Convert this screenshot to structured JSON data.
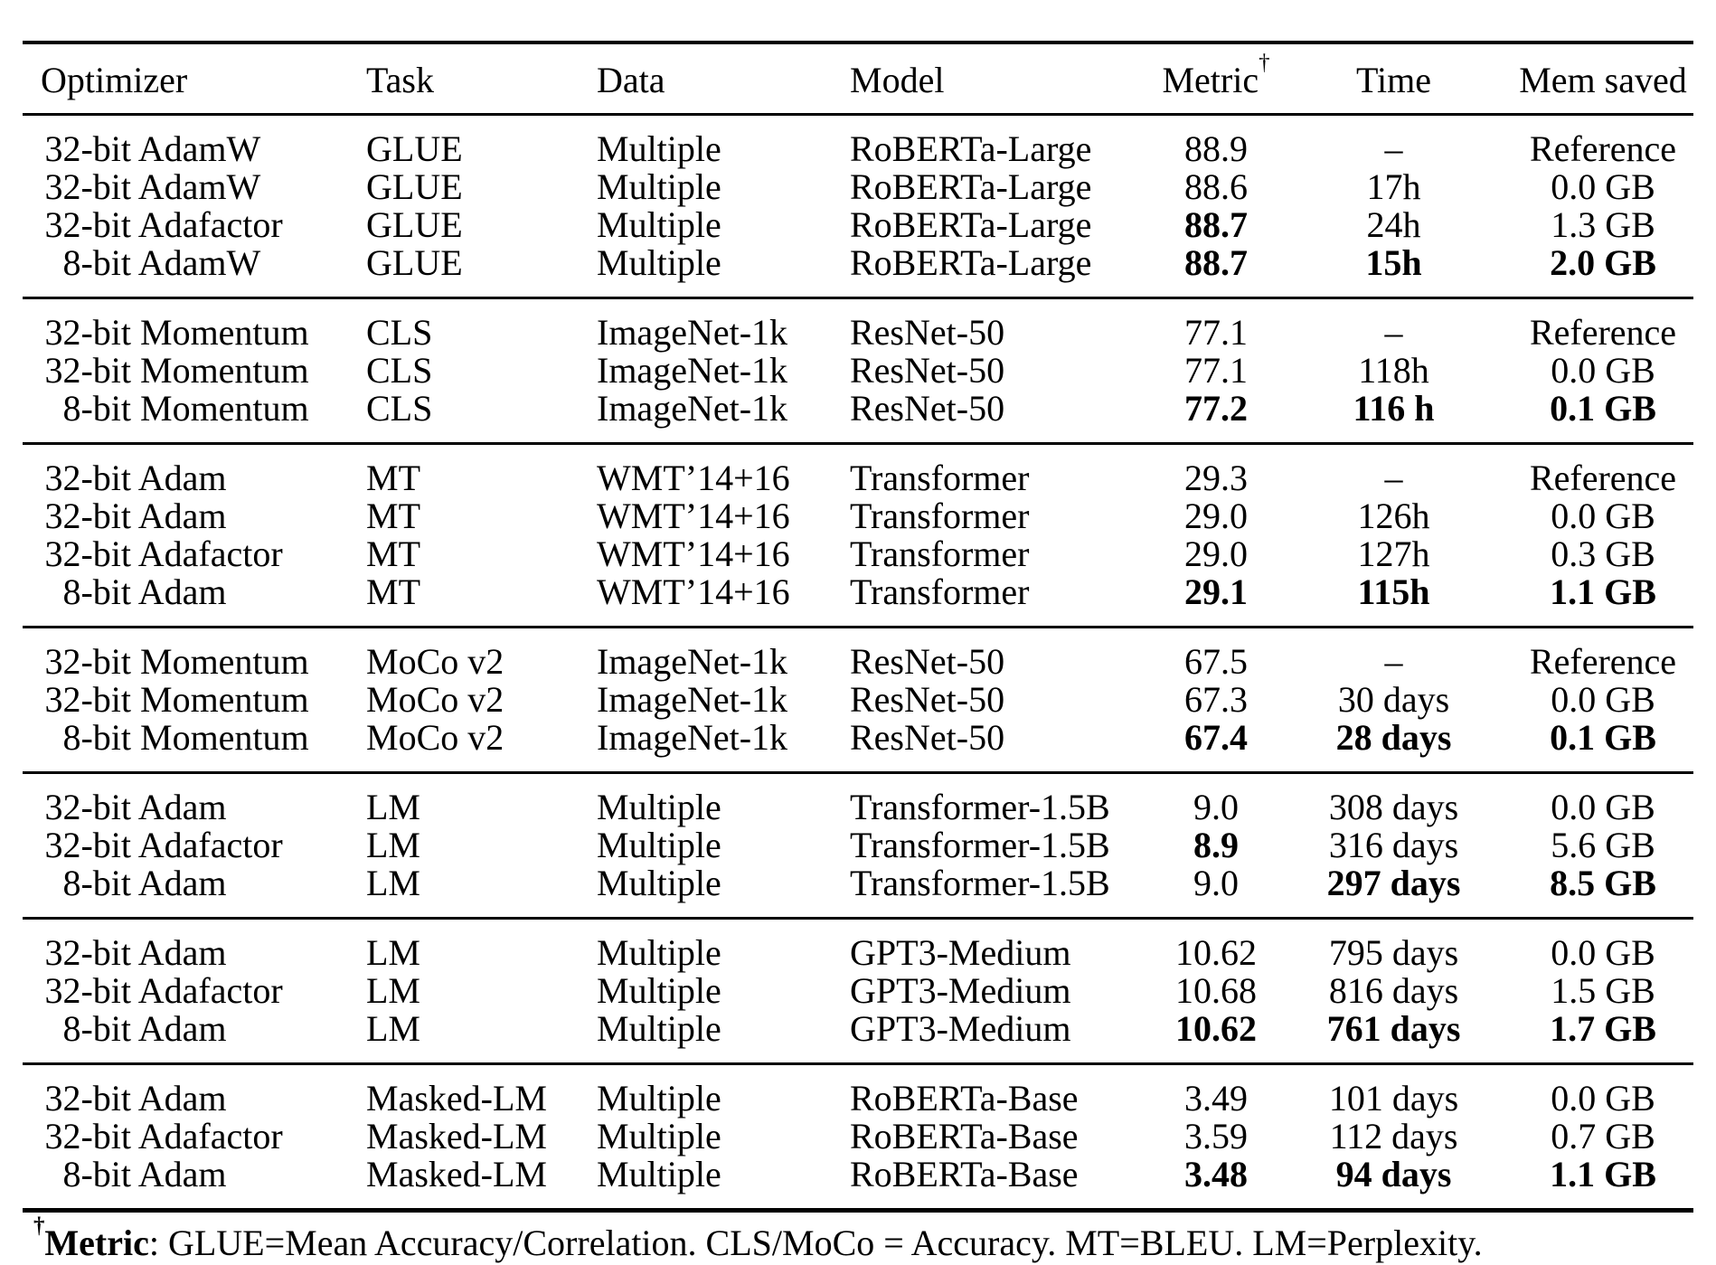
{
  "table": {
    "headers": [
      {
        "label": "Optimizer",
        "align": "left"
      },
      {
        "label": "Task",
        "align": "left"
      },
      {
        "label": "Data",
        "align": "left"
      },
      {
        "label": "Model",
        "align": "left"
      },
      {
        "label": "Metric",
        "sup": "†",
        "align": "center"
      },
      {
        "label": "Time",
        "align": "center"
      },
      {
        "label": "Mem saved",
        "align": "center"
      }
    ],
    "groups": [
      {
        "rows": [
          {
            "optimizer": "32-bit AdamW",
            "task": "GLUE",
            "data": "Multiple",
            "model": "RoBERTa-Large",
            "metric": "88.9",
            "time": "–",
            "mem": "Reference",
            "bold": []
          },
          {
            "optimizer": "32-bit AdamW",
            "task": "GLUE",
            "data": "Multiple",
            "model": "RoBERTa-Large",
            "metric": "88.6",
            "time": "17h",
            "mem": "0.0 GB",
            "bold": []
          },
          {
            "optimizer": "32-bit Adafactor",
            "task": "GLUE",
            "data": "Multiple",
            "model": "RoBERTa-Large",
            "metric": "88.7",
            "time": "24h",
            "mem": "1.3 GB",
            "bold": [
              "metric"
            ]
          },
          {
            "optimizer": "8-bit AdamW",
            "task": "GLUE",
            "data": "Multiple",
            "model": "RoBERTa-Large",
            "metric": "88.7",
            "time": "15h",
            "mem": "2.0 GB",
            "bold": [
              "metric",
              "time",
              "mem"
            ]
          }
        ]
      },
      {
        "rows": [
          {
            "optimizer": "32-bit Momentum",
            "task": "CLS",
            "data": "ImageNet-1k",
            "model": "ResNet-50",
            "metric": "77.1",
            "time": "–",
            "mem": "Reference",
            "bold": []
          },
          {
            "optimizer": "32-bit Momentum",
            "task": "CLS",
            "data": "ImageNet-1k",
            "model": "ResNet-50",
            "metric": "77.1",
            "time": "118h",
            "mem": "0.0 GB",
            "bold": []
          },
          {
            "optimizer": "8-bit Momentum",
            "task": "CLS",
            "data": "ImageNet-1k",
            "model": "ResNet-50",
            "metric": "77.2",
            "time": "116 h",
            "mem": "0.1 GB",
            "bold": [
              "metric",
              "time",
              "mem"
            ]
          }
        ]
      },
      {
        "rows": [
          {
            "optimizer": "32-bit Adam",
            "task": "MT",
            "data": "WMT’14+16",
            "model": "Transformer",
            "metric": "29.3",
            "time": "–",
            "mem": "Reference",
            "bold": []
          },
          {
            "optimizer": "32-bit Adam",
            "task": "MT",
            "data": "WMT’14+16",
            "model": "Transformer",
            "metric": "29.0",
            "time": "126h",
            "mem": "0.0 GB",
            "bold": []
          },
          {
            "optimizer": "32-bit Adafactor",
            "task": "MT",
            "data": "WMT’14+16",
            "model": "Transformer",
            "metric": "29.0",
            "time": "127h",
            "mem": "0.3 GB",
            "bold": []
          },
          {
            "optimizer": "8-bit Adam",
            "task": "MT",
            "data": "WMT’14+16",
            "model": "Transformer",
            "metric": "29.1",
            "time": "115h",
            "mem": "1.1 GB",
            "bold": [
              "metric",
              "time",
              "mem"
            ]
          }
        ]
      },
      {
        "rows": [
          {
            "optimizer": "32-bit Momentum",
            "task": "MoCo v2",
            "data": "ImageNet-1k",
            "model": "ResNet-50",
            "metric": "67.5",
            "time": "–",
            "mem": "Reference",
            "bold": []
          },
          {
            "optimizer": "32-bit Momentum",
            "task": "MoCo v2",
            "data": "ImageNet-1k",
            "model": "ResNet-50",
            "metric": "67.3",
            "time": "30 days",
            "mem": "0.0 GB",
            "bold": []
          },
          {
            "optimizer": "8-bit Momentum",
            "task": "MoCo v2",
            "data": "ImageNet-1k",
            "model": "ResNet-50",
            "metric": "67.4",
            "time": "28 days",
            "mem": "0.1 GB",
            "bold": [
              "metric",
              "time",
              "mem"
            ]
          }
        ]
      },
      {
        "rows": [
          {
            "optimizer": "32-bit Adam",
            "task": "LM",
            "data": "Multiple",
            "model": "Transformer-1.5B",
            "metric": "9.0",
            "time": "308 days",
            "mem": "0.0 GB",
            "bold": []
          },
          {
            "optimizer": "32-bit Adafactor",
            "task": "LM",
            "data": "Multiple",
            "model": "Transformer-1.5B",
            "metric": "8.9",
            "time": "316 days",
            "mem": "5.6 GB",
            "bold": [
              "metric"
            ]
          },
          {
            "optimizer": "8-bit Adam",
            "task": "LM",
            "data": "Multiple",
            "model": "Transformer-1.5B",
            "metric": "9.0",
            "time": "297 days",
            "mem": "8.5 GB",
            "bold": [
              "time",
              "mem"
            ]
          }
        ]
      },
      {
        "rows": [
          {
            "optimizer": "32-bit Adam",
            "task": "LM",
            "data": "Multiple",
            "model": "GPT3-Medium",
            "metric": "10.62",
            "time": "795 days",
            "mem": "0.0 GB",
            "bold": []
          },
          {
            "optimizer": "32-bit Adafactor",
            "task": "LM",
            "data": "Multiple",
            "model": "GPT3-Medium",
            "metric": "10.68",
            "time": "816 days",
            "mem": "1.5 GB",
            "bold": []
          },
          {
            "optimizer": "8-bit Adam",
            "task": "LM",
            "data": "Multiple",
            "model": "GPT3-Medium",
            "metric": "10.62",
            "time": "761 days",
            "mem": "1.7 GB",
            "bold": [
              "metric",
              "time",
              "mem"
            ]
          }
        ]
      },
      {
        "rows": [
          {
            "optimizer": "32-bit Adam",
            "task": "Masked-LM",
            "data": "Multiple",
            "model": "RoBERTa-Base",
            "metric": "3.49",
            "time": "101 days",
            "mem": "0.0 GB",
            "bold": []
          },
          {
            "optimizer": "32-bit Adafactor",
            "task": "Masked-LM",
            "data": "Multiple",
            "model": "RoBERTa-Base",
            "metric": "3.59",
            "time": "112 days",
            "mem": "0.7 GB",
            "bold": []
          },
          {
            "optimizer": "8-bit Adam",
            "task": "Masked-LM",
            "data": "Multiple",
            "model": "RoBERTa-Base",
            "metric": "3.48",
            "time": "94 days",
            "mem": "1.1 GB",
            "bold": [
              "metric",
              "time",
              "mem"
            ]
          }
        ]
      }
    ]
  },
  "footnote": {
    "dagger": "†",
    "term": "Metric",
    "text": ": GLUE=Mean Accuracy/Correlation. CLS/MoCo = Accuracy. MT=BLEU. LM=Perplexity."
  }
}
